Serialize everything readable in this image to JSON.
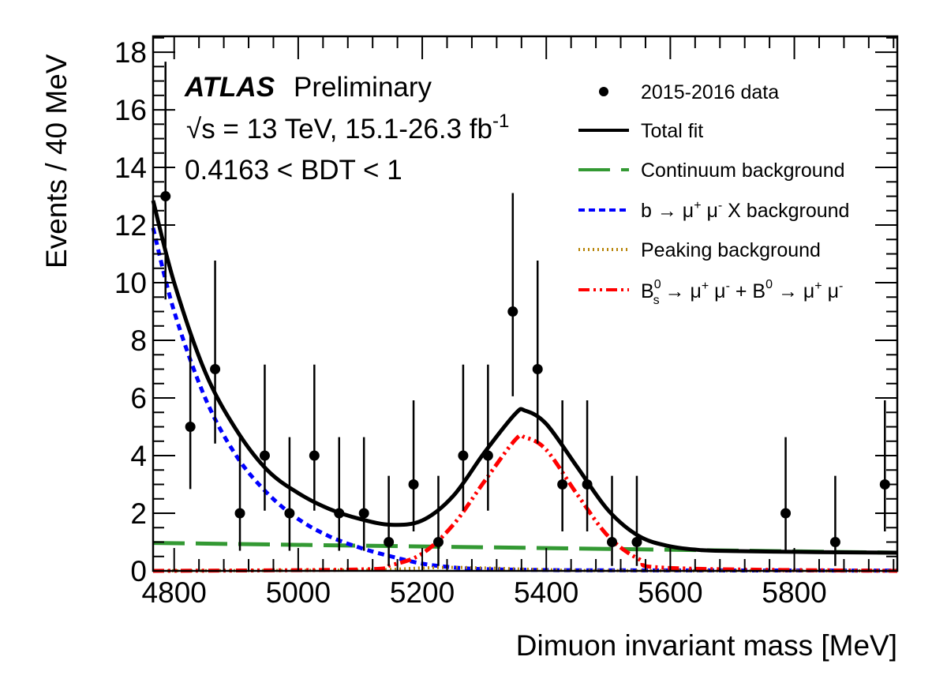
{
  "chart_data": {
    "type": "scatter",
    "title": "",
    "xlabel": "Dimuon invariant mass [MeV]",
    "ylabel": "Events / 40 MeV",
    "xlim": [
      4766,
      5966
    ],
    "ylim": [
      0,
      18.55
    ],
    "bin_width": 40,
    "x_ticks": [
      4800,
      5000,
      5200,
      5400,
      5600,
      5800
    ],
    "x_tick_labels": [
      "4800",
      "5000",
      "5200",
      "5400",
      "5600",
      "5800"
    ],
    "y_ticks": [
      0,
      2,
      4,
      6,
      8,
      10,
      12,
      14,
      16,
      18
    ],
    "y_tick_labels": [
      "0",
      "2",
      "4",
      "6",
      "8",
      "10",
      "12",
      "14",
      "16",
      "18"
    ],
    "grid": false,
    "legend_position": "top-right",
    "annotations": {
      "experiment": "ATLAS",
      "status": "Preliminary",
      "energy_lumi": "√s = 13 TeV, 15.1-26.3 fb",
      "energy_lumi_sup": "-1",
      "selection": "0.4163 < BDT < 1"
    },
    "legend": [
      {
        "key": "data",
        "label": "2015-2016 data",
        "style": "marker",
        "color": "#000000"
      },
      {
        "key": "total",
        "label": "Total fit",
        "style": "solid",
        "color": "#000000"
      },
      {
        "key": "continuum",
        "label": "Continuum background",
        "style": "dashed",
        "color": "#339933"
      },
      {
        "key": "bmumux",
        "label_parts": [
          "b → μ",
          "+",
          " μ",
          "-",
          " X background"
        ],
        "style": "dotted",
        "color": "#0000ff"
      },
      {
        "key": "peaking",
        "label": "Peaking background",
        "style": "fine-dotted",
        "color": "#b8860b"
      },
      {
        "key": "signal",
        "label_parts": [
          "B",
          "0",
          "s",
          " → μ",
          "+",
          " μ",
          "-",
          " + B",
          "0",
          " → μ",
          "+",
          " μ",
          "-"
        ],
        "style": "dash-dot-dot",
        "color": "#ff0000"
      }
    ],
    "data_points": {
      "name": "2015-2016 data",
      "x": [
        4786,
        4826,
        4866,
        4906,
        4946,
        4986,
        5026,
        5066,
        5106,
        5146,
        5186,
        5226,
        5266,
        5306,
        5346,
        5386,
        5426,
        5466,
        5506,
        5546,
        5786,
        5866,
        5946
      ],
      "y": [
        13,
        5,
        7,
        2,
        4,
        2,
        4,
        2,
        2,
        1,
        3,
        1,
        4,
        4,
        9,
        7,
        3,
        3,
        1,
        1,
        2,
        1,
        3
      ],
      "err_note": "Poisson asymmetric error bars"
    },
    "series": [
      {
        "name": "Total fit",
        "key": "total",
        "x": [
          4766,
          4800,
          4850,
          4900,
          4950,
          5000,
          5050,
          5100,
          5150,
          5200,
          5250,
          5300,
          5350,
          5366,
          5400,
          5450,
          5500,
          5550,
          5600,
          5650,
          5700,
          5800,
          5900,
          5966
        ],
        "y": [
          12.85,
          10.0,
          6.9,
          4.9,
          3.5,
          2.7,
          2.15,
          1.8,
          1.6,
          1.75,
          2.6,
          4.1,
          5.45,
          5.56,
          5.1,
          3.6,
          2.1,
          1.2,
          0.85,
          0.72,
          0.69,
          0.66,
          0.64,
          0.63
        ]
      },
      {
        "name": "Continuum background",
        "key": "continuum",
        "x": [
          4766,
          5966
        ],
        "y": [
          0.97,
          0.63
        ]
      },
      {
        "name": "b → μ+ μ- X background",
        "key": "bmumux",
        "x": [
          4766,
          4800,
          4850,
          4900,
          4950,
          5000,
          5050,
          5100,
          5150,
          5200,
          5250,
          5300,
          5400,
          5500,
          5966
        ],
        "y": [
          11.9,
          9.0,
          6.0,
          4.0,
          2.7,
          1.8,
          1.2,
          0.8,
          0.5,
          0.25,
          0.12,
          0.06,
          0.03,
          0.02,
          0.01
        ]
      },
      {
        "name": "Peaking background",
        "key": "peaking",
        "x": [
          4766,
          5100,
          5200,
          5250,
          5300,
          5400,
          5500,
          5966
        ],
        "y": [
          0.0,
          0.03,
          0.1,
          0.12,
          0.1,
          0.04,
          0.01,
          0.0
        ]
      },
      {
        "name": "Bs0 → μ+ μ- + B0 → μ+ μ-",
        "key": "signal",
        "x": [
          4766,
          5100,
          5150,
          5200,
          5250,
          5300,
          5350,
          5366,
          5400,
          5450,
          5500,
          5550,
          5600,
          5966
        ],
        "y": [
          0.0,
          0.05,
          0.2,
          0.6,
          1.6,
          3.1,
          4.55,
          4.63,
          4.2,
          2.65,
          1.2,
          0.4,
          0.1,
          0.0
        ]
      }
    ]
  }
}
